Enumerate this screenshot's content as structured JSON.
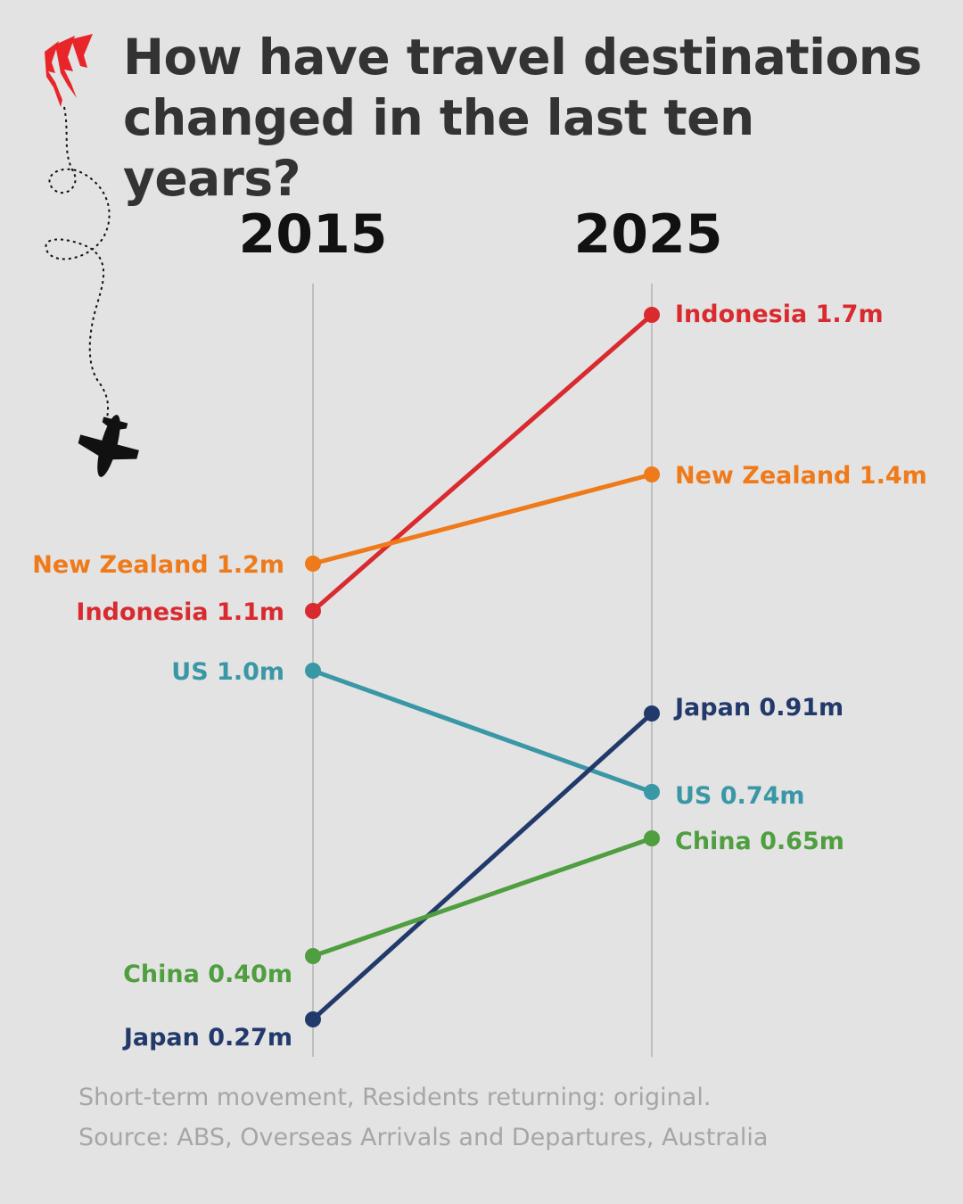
{
  "title": "How have travel destinations changed in the last ten years?",
  "footer": {
    "note": "Short-term movement, Residents returning: original.",
    "source": "Source: ABS, Overseas Arrivals and Departures, Australia"
  },
  "colors": {
    "background": "#e3e3e3",
    "logo": "#e8262a",
    "axis": "#9a9a9a"
  },
  "icons": [
    "sbs-logo-icon",
    "dotted-flight-path",
    "airplane-icon"
  ],
  "chart_data": {
    "type": "line",
    "style": "slope",
    "x": [
      "2015",
      "2025"
    ],
    "unit": "m",
    "series": [
      {
        "name": "Indonesia",
        "values": [
          1.1,
          1.7
        ],
        "labels": [
          "Indonesia 1.1m",
          "Indonesia 1.7m"
        ],
        "color": "#d92b2f"
      },
      {
        "name": "New Zealand",
        "values": [
          1.2,
          1.4
        ],
        "labels": [
          "New Zealand 1.2m",
          "New Zealand 1.4m"
        ],
        "color": "#ef7a1a"
      },
      {
        "name": "US",
        "values": [
          1.0,
          0.74
        ],
        "labels": [
          "US 1.0m",
          "US 0.74m"
        ],
        "color": "#3a97a6"
      },
      {
        "name": "Japan",
        "values": [
          0.27,
          0.91
        ],
        "labels": [
          "Japan 0.27m",
          "Japan 0.91m"
        ],
        "color": "#223a6b"
      },
      {
        "name": "China",
        "values": [
          0.4,
          0.65
        ],
        "labels": [
          "China 0.40m",
          "China 0.65m"
        ],
        "color": "#4f9e3f"
      }
    ],
    "grid": false,
    "legend": "none"
  }
}
